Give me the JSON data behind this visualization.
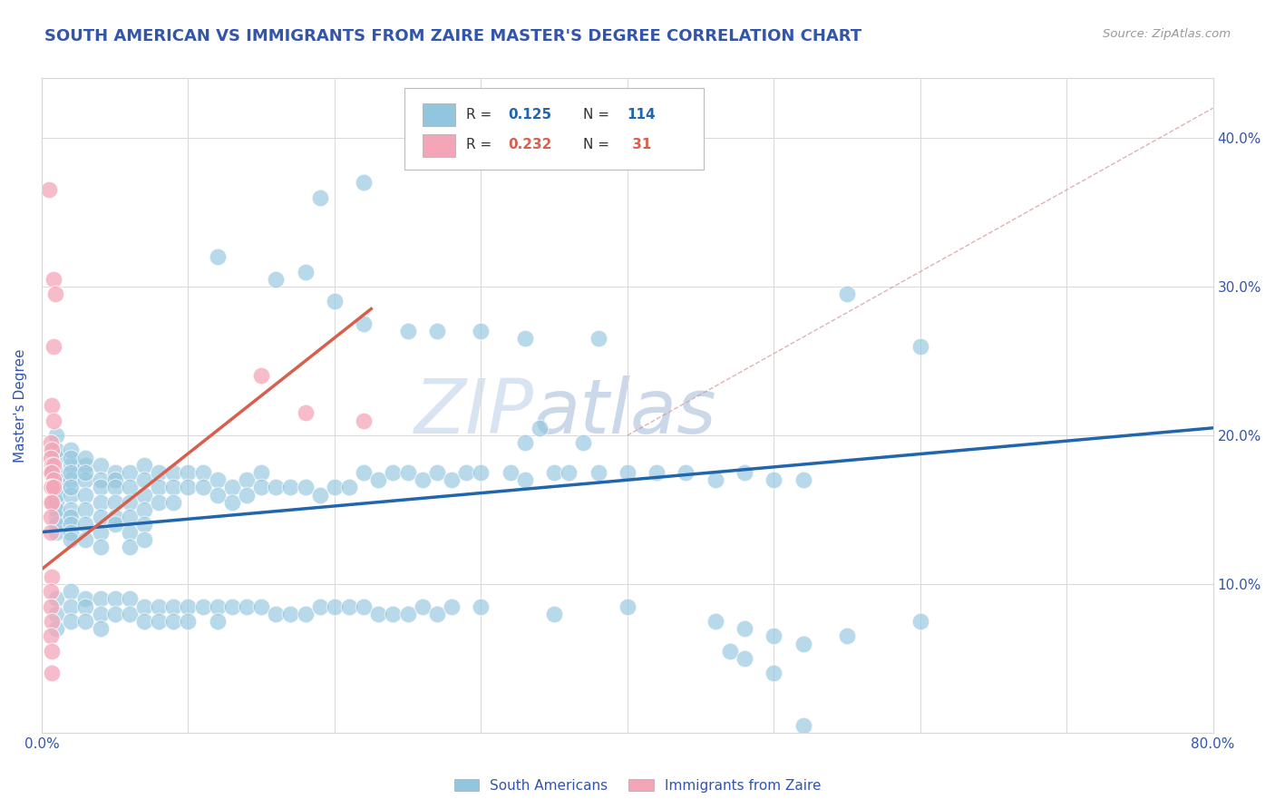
{
  "title": "SOUTH AMERICAN VS IMMIGRANTS FROM ZAIRE MASTER'S DEGREE CORRELATION CHART",
  "source_text": "Source: ZipAtlas.com",
  "ylabel": "Master's Degree",
  "xlim": [
    0.0,
    0.8
  ],
  "ylim": [
    0.0,
    0.44
  ],
  "blue_color": "#92c5de",
  "pink_color": "#f4a6b8",
  "blue_line_color": "#2166ac",
  "pink_line_color": "#d6604d",
  "dashed_line_color": "#d6a0a0",
  "watermark_zip": "ZIP",
  "watermark_atlas": "atlas",
  "blue_scatter": [
    [
      0.01,
      0.185
    ],
    [
      0.01,
      0.175
    ],
    [
      0.01,
      0.165
    ],
    [
      0.01,
      0.155
    ],
    [
      0.01,
      0.145
    ],
    [
      0.01,
      0.135
    ],
    [
      0.01,
      0.17
    ],
    [
      0.01,
      0.16
    ],
    [
      0.01,
      0.15
    ],
    [
      0.01,
      0.14
    ],
    [
      0.01,
      0.2
    ],
    [
      0.01,
      0.19
    ],
    [
      0.02,
      0.18
    ],
    [
      0.02,
      0.17
    ],
    [
      0.02,
      0.16
    ],
    [
      0.02,
      0.15
    ],
    [
      0.02,
      0.145
    ],
    [
      0.02,
      0.14
    ],
    [
      0.02,
      0.135
    ],
    [
      0.02,
      0.13
    ],
    [
      0.02,
      0.19
    ],
    [
      0.02,
      0.185
    ],
    [
      0.02,
      0.175
    ],
    [
      0.02,
      0.165
    ],
    [
      0.03,
      0.18
    ],
    [
      0.03,
      0.17
    ],
    [
      0.03,
      0.16
    ],
    [
      0.03,
      0.15
    ],
    [
      0.03,
      0.14
    ],
    [
      0.03,
      0.13
    ],
    [
      0.03,
      0.185
    ],
    [
      0.03,
      0.175
    ],
    [
      0.04,
      0.18
    ],
    [
      0.04,
      0.17
    ],
    [
      0.04,
      0.165
    ],
    [
      0.04,
      0.155
    ],
    [
      0.04,
      0.145
    ],
    [
      0.04,
      0.135
    ],
    [
      0.04,
      0.125
    ],
    [
      0.05,
      0.175
    ],
    [
      0.05,
      0.17
    ],
    [
      0.05,
      0.165
    ],
    [
      0.05,
      0.155
    ],
    [
      0.05,
      0.145
    ],
    [
      0.05,
      0.14
    ],
    [
      0.06,
      0.175
    ],
    [
      0.06,
      0.165
    ],
    [
      0.06,
      0.155
    ],
    [
      0.06,
      0.145
    ],
    [
      0.06,
      0.135
    ],
    [
      0.06,
      0.125
    ],
    [
      0.07,
      0.18
    ],
    [
      0.07,
      0.17
    ],
    [
      0.07,
      0.16
    ],
    [
      0.07,
      0.15
    ],
    [
      0.07,
      0.14
    ],
    [
      0.07,
      0.13
    ],
    [
      0.08,
      0.175
    ],
    [
      0.08,
      0.165
    ],
    [
      0.08,
      0.155
    ],
    [
      0.09,
      0.175
    ],
    [
      0.09,
      0.165
    ],
    [
      0.09,
      0.155
    ],
    [
      0.1,
      0.175
    ],
    [
      0.1,
      0.165
    ],
    [
      0.11,
      0.175
    ],
    [
      0.11,
      0.165
    ],
    [
      0.12,
      0.17
    ],
    [
      0.12,
      0.16
    ],
    [
      0.13,
      0.165
    ],
    [
      0.13,
      0.155
    ],
    [
      0.14,
      0.17
    ],
    [
      0.14,
      0.16
    ],
    [
      0.15,
      0.175
    ],
    [
      0.15,
      0.165
    ],
    [
      0.16,
      0.165
    ],
    [
      0.17,
      0.165
    ],
    [
      0.18,
      0.165
    ],
    [
      0.19,
      0.16
    ],
    [
      0.2,
      0.165
    ],
    [
      0.21,
      0.165
    ],
    [
      0.22,
      0.175
    ],
    [
      0.23,
      0.17
    ],
    [
      0.24,
      0.175
    ],
    [
      0.25,
      0.175
    ],
    [
      0.26,
      0.17
    ],
    [
      0.27,
      0.175
    ],
    [
      0.28,
      0.17
    ],
    [
      0.29,
      0.175
    ],
    [
      0.3,
      0.175
    ],
    [
      0.32,
      0.175
    ],
    [
      0.33,
      0.17
    ],
    [
      0.35,
      0.175
    ],
    [
      0.36,
      0.175
    ],
    [
      0.38,
      0.175
    ],
    [
      0.4,
      0.175
    ],
    [
      0.42,
      0.175
    ],
    [
      0.44,
      0.175
    ],
    [
      0.46,
      0.17
    ],
    [
      0.48,
      0.175
    ],
    [
      0.5,
      0.17
    ],
    [
      0.52,
      0.17
    ],
    [
      0.01,
      0.09
    ],
    [
      0.01,
      0.08
    ],
    [
      0.01,
      0.07
    ],
    [
      0.02,
      0.095
    ],
    [
      0.02,
      0.085
    ],
    [
      0.02,
      0.075
    ],
    [
      0.03,
      0.09
    ],
    [
      0.03,
      0.085
    ],
    [
      0.03,
      0.075
    ],
    [
      0.04,
      0.09
    ],
    [
      0.04,
      0.08
    ],
    [
      0.04,
      0.07
    ],
    [
      0.05,
      0.09
    ],
    [
      0.05,
      0.08
    ],
    [
      0.06,
      0.09
    ],
    [
      0.06,
      0.08
    ],
    [
      0.07,
      0.085
    ],
    [
      0.07,
      0.075
    ],
    [
      0.08,
      0.085
    ],
    [
      0.08,
      0.075
    ],
    [
      0.09,
      0.085
    ],
    [
      0.09,
      0.075
    ],
    [
      0.1,
      0.085
    ],
    [
      0.1,
      0.075
    ],
    [
      0.11,
      0.085
    ],
    [
      0.12,
      0.085
    ],
    [
      0.12,
      0.075
    ],
    [
      0.13,
      0.085
    ],
    [
      0.14,
      0.085
    ],
    [
      0.15,
      0.085
    ],
    [
      0.16,
      0.08
    ],
    [
      0.17,
      0.08
    ],
    [
      0.18,
      0.08
    ],
    [
      0.19,
      0.085
    ],
    [
      0.2,
      0.085
    ],
    [
      0.21,
      0.085
    ],
    [
      0.22,
      0.085
    ],
    [
      0.23,
      0.08
    ],
    [
      0.24,
      0.08
    ],
    [
      0.25,
      0.08
    ],
    [
      0.26,
      0.085
    ],
    [
      0.27,
      0.08
    ],
    [
      0.28,
      0.085
    ],
    [
      0.3,
      0.085
    ],
    [
      0.35,
      0.08
    ],
    [
      0.4,
      0.085
    ],
    [
      0.46,
      0.075
    ],
    [
      0.48,
      0.07
    ],
    [
      0.5,
      0.065
    ],
    [
      0.52,
      0.06
    ],
    [
      0.55,
      0.065
    ],
    [
      0.6,
      0.075
    ],
    [
      0.16,
      0.305
    ],
    [
      0.18,
      0.31
    ],
    [
      0.2,
      0.29
    ],
    [
      0.22,
      0.275
    ],
    [
      0.25,
      0.27
    ],
    [
      0.27,
      0.27
    ],
    [
      0.3,
      0.27
    ],
    [
      0.33,
      0.265
    ],
    [
      0.38,
      0.265
    ],
    [
      0.12,
      0.32
    ],
    [
      0.19,
      0.36
    ],
    [
      0.22,
      0.37
    ],
    [
      0.33,
      0.195
    ],
    [
      0.34,
      0.205
    ],
    [
      0.37,
      0.195
    ],
    [
      0.55,
      0.295
    ],
    [
      0.6,
      0.26
    ],
    [
      0.47,
      0.055
    ],
    [
      0.48,
      0.05
    ],
    [
      0.5,
      0.04
    ],
    [
      0.52,
      0.005
    ]
  ],
  "pink_scatter": [
    [
      0.005,
      0.365
    ],
    [
      0.008,
      0.305
    ],
    [
      0.009,
      0.295
    ],
    [
      0.008,
      0.26
    ],
    [
      0.007,
      0.22
    ],
    [
      0.008,
      0.21
    ],
    [
      0.006,
      0.195
    ],
    [
      0.007,
      0.19
    ],
    [
      0.006,
      0.185
    ],
    [
      0.007,
      0.18
    ],
    [
      0.008,
      0.18
    ],
    [
      0.006,
      0.175
    ],
    [
      0.007,
      0.175
    ],
    [
      0.008,
      0.17
    ],
    [
      0.006,
      0.165
    ],
    [
      0.007,
      0.165
    ],
    [
      0.008,
      0.165
    ],
    [
      0.006,
      0.155
    ],
    [
      0.007,
      0.155
    ],
    [
      0.006,
      0.145
    ],
    [
      0.006,
      0.135
    ],
    [
      0.007,
      0.105
    ],
    [
      0.006,
      0.095
    ],
    [
      0.006,
      0.085
    ],
    [
      0.007,
      0.075
    ],
    [
      0.006,
      0.065
    ],
    [
      0.007,
      0.055
    ],
    [
      0.007,
      0.04
    ],
    [
      0.15,
      0.24
    ],
    [
      0.18,
      0.215
    ],
    [
      0.22,
      0.21
    ]
  ],
  "blue_line_x": [
    0.0,
    0.8
  ],
  "blue_line_y": [
    0.135,
    0.205
  ],
  "pink_line_x": [
    0.0,
    0.225
  ],
  "pink_line_y": [
    0.11,
    0.285
  ],
  "dashed_line_x": [
    0.4,
    0.8
  ],
  "dashed_line_y": [
    0.2,
    0.42
  ],
  "grid_color": "#d8d8d8",
  "background_color": "#ffffff",
  "title_color": "#3355aa",
  "axis_label_color": "#3355aa",
  "tick_color": "#3355aa",
  "legend_label1": "South Americans",
  "legend_label2": "Immigrants from Zaire"
}
